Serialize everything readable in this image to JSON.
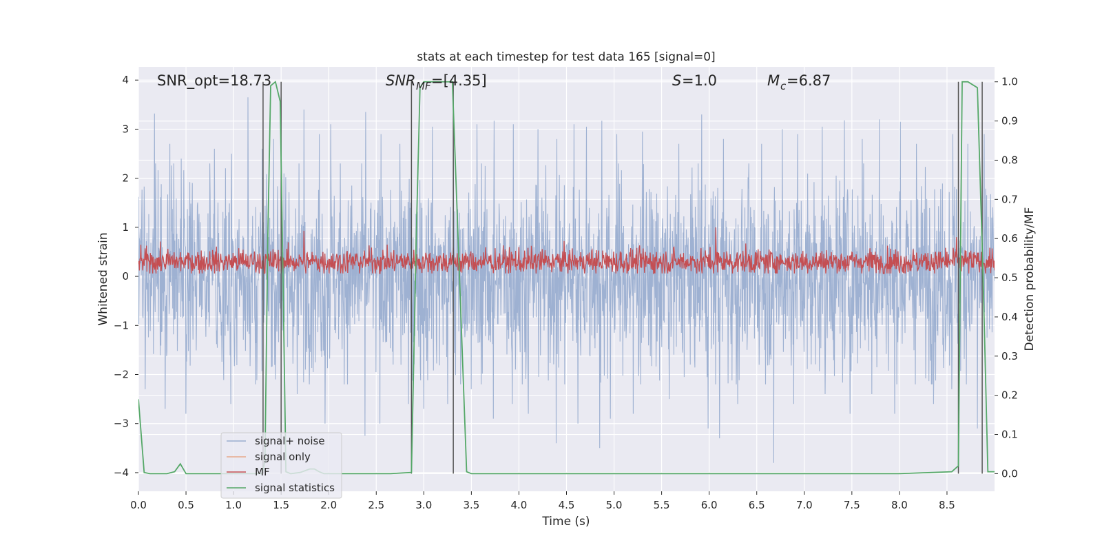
{
  "chart_data": {
    "type": "line",
    "title": "stats at each timestep for test data 165 [signal=0]",
    "xlabel": "Time (s)",
    "ylabel_left": "Whitened strain",
    "ylabel_right": "Detection probability/MF",
    "xlim": [
      0.0,
      9.0
    ],
    "ylim_left": [
      -4.38,
      4.27
    ],
    "ylim_right": [
      -0.045,
      1.0382
    ],
    "xticks": [
      "0.0",
      "0.5",
      "1.0",
      "1.5",
      "2.0",
      "2.5",
      "3.0",
      "3.5",
      "4.0",
      "4.5",
      "5.0",
      "5.5",
      "6.0",
      "6.5",
      "7.0",
      "7.5",
      "8.0",
      "8.5"
    ],
    "xtick_values": [
      0.0,
      0.5,
      1.0,
      1.5,
      2.0,
      2.5,
      3.0,
      3.5,
      4.0,
      4.5,
      5.0,
      5.5,
      6.0,
      6.5,
      7.0,
      7.5,
      8.0,
      8.5
    ],
    "yticks_left": [
      "4",
      "3",
      "2",
      "1",
      "0",
      "−1",
      "−2",
      "−3",
      "−4"
    ],
    "ytick_values_left": [
      4,
      3,
      2,
      1,
      0,
      -1,
      -2,
      -3,
      -4
    ],
    "yticks_right": [
      "1.0",
      "0.9",
      "0.8",
      "0.7",
      "0.6",
      "0.5",
      "0.4",
      "0.3",
      "0.2",
      "0.1",
      "0.0"
    ],
    "ytick_values_right": [
      1.0,
      0.9,
      0.8,
      0.7,
      0.6,
      0.5,
      0.4,
      0.3,
      0.2,
      0.1,
      0.0
    ],
    "grid": true,
    "legend_position": "lower-left",
    "annotations": {
      "snr_opt": "SNR_opt=18.73",
      "snr_mf_sym": "SNR",
      "snr_mf_sub": "MF",
      "snr_mf_val": "=[4.35]",
      "s_sym": "S",
      "s_val": "=1.0",
      "mc_sym": "M",
      "mc_sub": "c",
      "mc_val": "=6.87"
    },
    "series": [
      {
        "name": "signal+ noise",
        "color": "#9aaed0",
        "axis": "left",
        "description_values": "whitened noise strain, approx range -3.8 to 3.7",
        "spikes_up": [
          [
            0.17,
            3.32
          ],
          [
            0.33,
            2.7
          ],
          [
            0.45,
            2.4
          ],
          [
            0.8,
            2.6
          ],
          [
            0.98,
            2.5
          ],
          [
            1.15,
            3.65
          ],
          [
            1.3,
            2.6
          ],
          [
            1.42,
            2.8
          ],
          [
            1.74,
            3.4
          ],
          [
            1.9,
            2.9
          ],
          [
            2.02,
            3.1
          ],
          [
            2.39,
            3.35
          ],
          [
            2.55,
            2.9
          ],
          [
            2.75,
            2.7
          ],
          [
            3.09,
            3.05
          ],
          [
            3.31,
            2.6
          ],
          [
            3.56,
            3.1
          ],
          [
            3.74,
            3.17
          ],
          [
            3.94,
            3.1
          ],
          [
            4.2,
            3.0
          ],
          [
            4.4,
            2.8
          ],
          [
            4.58,
            3.1
          ],
          [
            4.71,
            3.05
          ],
          [
            4.87,
            3.17
          ],
          [
            5.03,
            2.9
          ],
          [
            5.3,
            2.95
          ],
          [
            5.68,
            2.7
          ],
          [
            5.92,
            3.3
          ],
          [
            6.15,
            2.8
          ],
          [
            6.3,
            3.1
          ],
          [
            6.55,
            2.7
          ],
          [
            6.77,
            3.0
          ],
          [
            6.93,
            2.9
          ],
          [
            7.19,
            3.05
          ],
          [
            7.42,
            3.18
          ],
          [
            7.61,
            2.8
          ],
          [
            7.79,
            3.2
          ],
          [
            8.01,
            3.15
          ],
          [
            8.18,
            2.7
          ],
          [
            8.36,
            3.0
          ],
          [
            8.56,
            2.9
          ],
          [
            8.72,
            2.7
          ],
          [
            8.89,
            2.9
          ]
        ],
        "spikes_down": [
          [
            0.07,
            -2.3
          ],
          [
            0.28,
            -2.7
          ],
          [
            0.5,
            -2.8
          ],
          [
            0.97,
            -2.6
          ],
          [
            1.23,
            -2.2
          ],
          [
            1.44,
            -2.1
          ],
          [
            1.67,
            -2.4
          ],
          [
            1.96,
            -3.0
          ],
          [
            2.38,
            -3.25
          ],
          [
            2.54,
            -3.0
          ],
          [
            2.84,
            -2.6
          ],
          [
            3.0,
            -2.7
          ],
          [
            3.25,
            -2.6
          ],
          [
            3.5,
            -2.3
          ],
          [
            3.73,
            -2.9
          ],
          [
            3.93,
            -2.6
          ],
          [
            4.1,
            -2.8
          ],
          [
            4.39,
            -3.4
          ],
          [
            4.62,
            -3.0
          ],
          [
            4.85,
            -3.5
          ],
          [
            4.96,
            -2.9
          ],
          [
            5.2,
            -2.8
          ],
          [
            5.58,
            -2.5
          ],
          [
            5.99,
            -3.1
          ],
          [
            6.11,
            -3.3
          ],
          [
            6.3,
            -2.6
          ],
          [
            6.68,
            -3.8
          ],
          [
            6.89,
            -2.6
          ],
          [
            7.22,
            -2.4
          ],
          [
            7.48,
            -2.8
          ],
          [
            7.71,
            -2.4
          ],
          [
            7.95,
            -2.8
          ],
          [
            8.36,
            -2.6
          ],
          [
            8.55,
            -2.3
          ],
          [
            8.82,
            -3.1
          ]
        ]
      },
      {
        "name": "signal only",
        "color": "#e8a98c",
        "axis": "left",
        "values": []
      },
      {
        "name": "MF",
        "color": "#c44e52",
        "axis": "left",
        "description_values": "matched-filter output, approx 0.1 to 0.8, mean 0.3",
        "peaks": [
          [
            1.74,
            0.93
          ],
          [
            6.07,
            1.0
          ],
          [
            8.6,
            0.8
          ]
        ]
      },
      {
        "name": "signal statistics",
        "color": "#55a868",
        "axis": "right",
        "x": [
          0.0,
          0.06,
          0.12,
          0.2,
          0.3,
          0.38,
          0.44,
          0.5,
          0.55,
          1.0,
          1.3,
          1.33,
          1.36,
          1.39,
          1.44,
          1.49,
          1.52,
          1.55,
          1.6,
          1.7,
          1.8,
          1.85,
          1.9,
          1.95,
          2.0,
          2.3,
          2.65,
          2.87,
          2.92,
          2.96,
          3.0,
          3.1,
          3.3,
          3.45,
          3.5,
          4.0,
          5.0,
          6.0,
          7.0,
          8.0,
          8.55,
          8.62,
          8.66,
          8.72,
          8.82,
          8.88,
          8.93,
          9.0
        ],
        "y": [
          0.19,
          0.003,
          0.0,
          0.0,
          0.0,
          0.005,
          0.025,
          0.0,
          0.0,
          0.0,
          0.0,
          0.03,
          0.6,
          0.99,
          1.0,
          0.95,
          0.5,
          0.005,
          0.0,
          0.003,
          0.012,
          0.012,
          0.005,
          0.0,
          0.0,
          0.0,
          0.0,
          0.003,
          0.6,
          0.985,
          1.0,
          1.0,
          1.0,
          0.005,
          0.0,
          0.0,
          0.0,
          0.0,
          0.0,
          0.0,
          0.005,
          0.02,
          1.0,
          1.0,
          0.985,
          0.5,
          0.005,
          0.005
        ]
      }
    ],
    "vertical_lines": [
      1.31,
      1.5,
      2.87,
      3.31,
      8.62,
      8.87
    ]
  }
}
